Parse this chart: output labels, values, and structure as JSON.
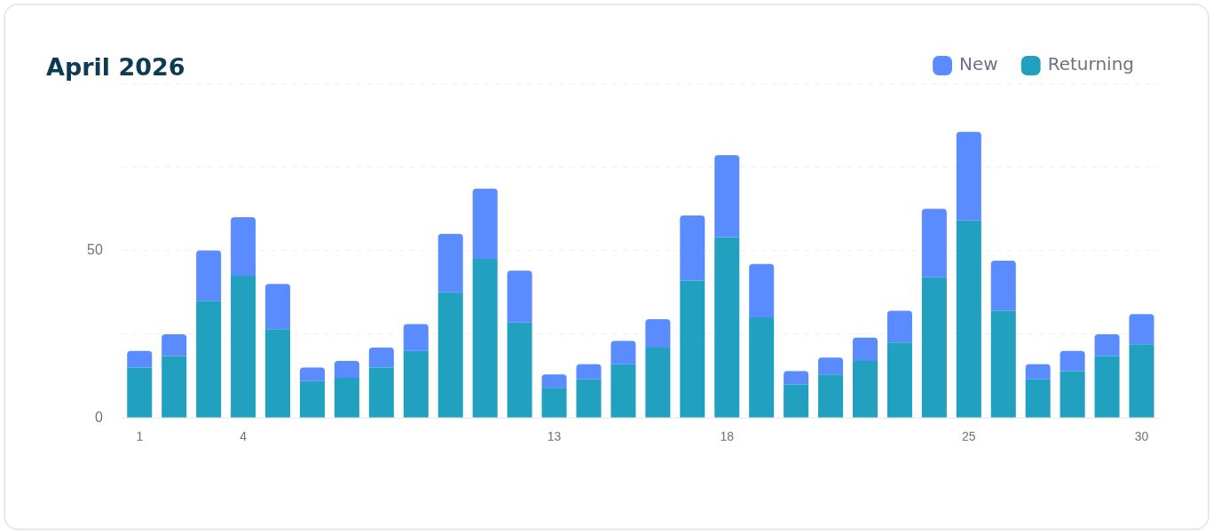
{
  "chart_data": {
    "type": "bar",
    "title": "April 2026",
    "categories": [
      "1",
      null,
      null,
      "4",
      null,
      null,
      null,
      null,
      null,
      null,
      null,
      null,
      "13",
      null,
      null,
      null,
      null,
      "18",
      null,
      null,
      null,
      null,
      null,
      null,
      "25",
      null,
      null,
      null,
      null,
      "30"
    ],
    "series": [
      {
        "name": "Returning",
        "color": "#22a0bf",
        "values": [
          15,
          18.5,
          35,
          42.5,
          26.5,
          11,
          12,
          15,
          20,
          37.5,
          47.5,
          28.5,
          9,
          11.5,
          16,
          21,
          41,
          54,
          30,
          10,
          13,
          17,
          22.5,
          42,
          59,
          32,
          11.5,
          14,
          18.5,
          22
        ]
      },
      {
        "name": "New",
        "color": "#5b8cff",
        "values": [
          5,
          6.5,
          15,
          17.5,
          13.5,
          4,
          5,
          6,
          8,
          17.5,
          21,
          15.5,
          4,
          4.5,
          7,
          8.5,
          19.5,
          24.5,
          16,
          4,
          5,
          7,
          9.5,
          20.5,
          26.5,
          15,
          4.5,
          6,
          6.5,
          9
        ]
      }
    ],
    "stacked": true,
    "ylim": [
      0,
      100
    ],
    "yticks": [
      0,
      {
        "value": 25,
        "label": null
      },
      50,
      {
        "value": 75,
        "label": null
      },
      {
        "value": 100,
        "label": null
      }
    ],
    "grid": "y",
    "legend": "top right"
  }
}
